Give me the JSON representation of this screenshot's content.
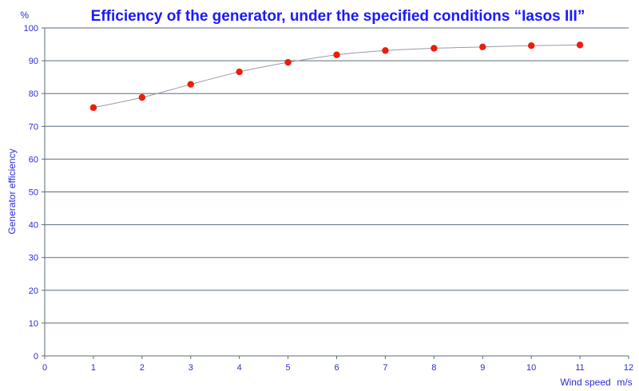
{
  "chart_data": {
    "type": "scatter",
    "title": "Efficiency of the generator, under the specified conditions “Iasos III”",
    "xlabel": "Wind speed",
    "xunit": "m/s",
    "ylabel": "Generator efficiency",
    "yunit": "%",
    "xlim": [
      0,
      12
    ],
    "ylim": [
      0,
      100
    ],
    "xticks": [
      0,
      1,
      2,
      3,
      4,
      5,
      6,
      7,
      8,
      9,
      10,
      11,
      12
    ],
    "yticks": [
      0,
      10,
      20,
      30,
      40,
      50,
      60,
      70,
      80,
      90,
      100
    ],
    "grid": true,
    "smooth_curve": true,
    "colors": {
      "points": "#ee1c0c",
      "curve": "#9a9aa8",
      "text": "#1a1aff"
    },
    "series": [
      {
        "x": [
          1,
          2,
          3,
          4,
          5,
          6,
          7,
          8,
          9,
          10,
          11
        ],
        "y": [
          75.7,
          78.8,
          82.8,
          86.6,
          89.5,
          91.8,
          93.1,
          93.8,
          94.2,
          94.6,
          94.8
        ]
      }
    ]
  }
}
